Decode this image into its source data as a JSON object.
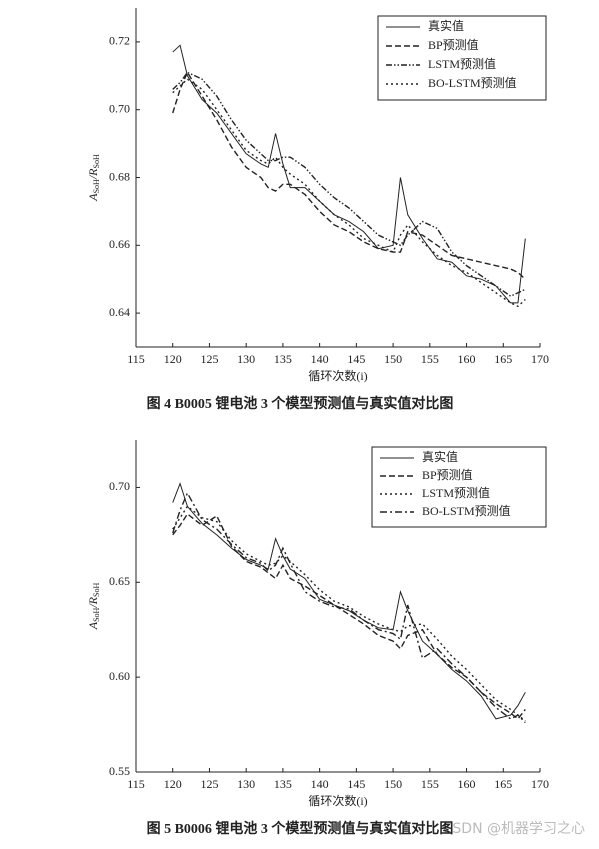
{
  "chart_data": [
    {
      "type": "line",
      "caption": "图 4   B0005 锂电池 3 个模型预测值与真实值对比图",
      "x_label": "循环次数(i)",
      "y_label": [
        "A",
        "SoH",
        "/R",
        "SoH"
      ],
      "x": [
        120,
        121,
        122,
        124,
        126,
        128,
        130,
        132,
        133,
        134,
        135,
        136,
        138,
        140,
        142,
        144,
        146,
        148,
        150,
        151,
        152,
        154,
        156,
        158,
        160,
        162,
        164,
        166,
        167,
        168
      ],
      "xlim": [
        115,
        170
      ],
      "xticks": [
        115,
        120,
        125,
        130,
        135,
        140,
        145,
        150,
        155,
        160,
        165,
        170
      ],
      "ylim": [
        0.63,
        0.73
      ],
      "yticks": [
        {
          "value": 0.64,
          "label": "0.64"
        },
        {
          "value": 0.66,
          "label": "0.66"
        },
        {
          "value": 0.68,
          "label": "0.68"
        },
        {
          "value": 0.7,
          "label": "0.70"
        },
        {
          "value": 0.72,
          "label": "0.72"
        }
      ],
      "legend": "upper right",
      "series": [
        {
          "name": "真实值",
          "color": "#222222",
          "style": "solid",
          "values": [
            0.717,
            0.719,
            0.71,
            0.703,
            0.699,
            0.693,
            0.687,
            0.684,
            0.683,
            0.693,
            0.684,
            0.677,
            0.677,
            0.673,
            0.669,
            0.667,
            0.664,
            0.659,
            0.66,
            0.68,
            0.669,
            0.662,
            0.656,
            0.655,
            0.651,
            0.65,
            0.648,
            0.643,
            0.643,
            0.662
          ]
        },
        {
          "name": "BP预测值",
          "color": "#222222",
          "style": "dashed",
          "values": [
            0.699,
            0.706,
            0.711,
            0.704,
            0.697,
            0.689,
            0.683,
            0.68,
            0.677,
            0.676,
            0.678,
            0.678,
            0.675,
            0.67,
            0.666,
            0.664,
            0.661,
            0.659,
            0.658,
            0.658,
            0.664,
            0.663,
            0.66,
            0.657,
            0.656,
            0.655,
            0.654,
            0.653,
            0.652,
            0.65
          ]
        },
        {
          "name": "LSTM预测值",
          "color": "#222222",
          "style": "dash-dot-dot",
          "values": [
            0.706,
            0.708,
            0.711,
            0.709,
            0.704,
            0.697,
            0.691,
            0.687,
            0.685,
            0.685,
            0.686,
            0.686,
            0.683,
            0.678,
            0.674,
            0.671,
            0.667,
            0.663,
            0.661,
            0.66,
            0.663,
            0.667,
            0.665,
            0.658,
            0.654,
            0.651,
            0.648,
            0.645,
            0.646,
            0.647
          ]
        },
        {
          "name": "BO-LSTM预测值",
          "color": "#222222",
          "style": "dotted",
          "values": [
            0.705,
            0.707,
            0.709,
            0.706,
            0.7,
            0.694,
            0.688,
            0.685,
            0.684,
            0.686,
            0.683,
            0.681,
            0.678,
            0.673,
            0.669,
            0.666,
            0.662,
            0.66,
            0.658,
            0.663,
            0.666,
            0.661,
            0.657,
            0.654,
            0.652,
            0.649,
            0.646,
            0.643,
            0.642,
            0.644
          ]
        }
      ]
    },
    {
      "type": "line",
      "caption": "图 5   B0006 锂电池 3 个模型预测值与真实值对比图",
      "x_label": "循环次数(i)",
      "y_label": [
        "A",
        "SoH",
        "/R",
        "SoH"
      ],
      "x": [
        120,
        121,
        122,
        124,
        126,
        128,
        130,
        132,
        133,
        134,
        135,
        136,
        138,
        140,
        142,
        144,
        146,
        148,
        150,
        151,
        152,
        154,
        156,
        158,
        160,
        162,
        164,
        166,
        167,
        168
      ],
      "xlim": [
        115,
        170
      ],
      "xticks": [
        115,
        120,
        125,
        130,
        135,
        140,
        145,
        150,
        155,
        160,
        165,
        170
      ],
      "ylim": [
        0.55,
        0.725
      ],
      "yticks": [
        {
          "value": 0.55,
          "label": "0.55"
        },
        {
          "value": 0.6,
          "label": "0.60"
        },
        {
          "value": 0.65,
          "label": "0.65"
        },
        {
          "value": 0.7,
          "label": "0.70"
        }
      ],
      "legend": "upper right",
      "series": [
        {
          "name": "真实值",
          "color": "#222222",
          "style": "solid",
          "values": [
            0.692,
            0.702,
            0.69,
            0.681,
            0.675,
            0.668,
            0.662,
            0.659,
            0.657,
            0.673,
            0.664,
            0.657,
            0.652,
            0.641,
            0.638,
            0.635,
            0.63,
            0.626,
            0.625,
            0.645,
            0.635,
            0.619,
            0.612,
            0.604,
            0.598,
            0.59,
            0.578,
            0.58,
            0.585,
            0.592
          ]
        },
        {
          "name": "BP预测值",
          "color": "#222222",
          "style": "dashed",
          "values": [
            0.675,
            0.68,
            0.686,
            0.68,
            0.685,
            0.669,
            0.661,
            0.658,
            0.655,
            0.652,
            0.659,
            0.652,
            0.648,
            0.643,
            0.638,
            0.633,
            0.628,
            0.622,
            0.619,
            0.615,
            0.622,
            0.625,
            0.612,
            0.605,
            0.6,
            0.592,
            0.586,
            0.581,
            0.578,
            0.583
          ]
        },
        {
          "name": "LSTM预测值",
          "color": "#222222",
          "style": "dotted",
          "values": [
            0.678,
            0.684,
            0.69,
            0.684,
            0.682,
            0.672,
            0.665,
            0.661,
            0.659,
            0.66,
            0.664,
            0.661,
            0.654,
            0.646,
            0.64,
            0.637,
            0.632,
            0.628,
            0.625,
            0.624,
            0.627,
            0.628,
            0.62,
            0.611,
            0.604,
            0.596,
            0.588,
            0.583,
            0.58,
            0.577
          ]
        },
        {
          "name": "BO-LSTM预测值",
          "color": "#222222",
          "style": "dash-dot",
          "values": [
            0.676,
            0.688,
            0.697,
            0.683,
            0.678,
            0.67,
            0.663,
            0.66,
            0.656,
            0.659,
            0.668,
            0.66,
            0.645,
            0.64,
            0.637,
            0.636,
            0.63,
            0.625,
            0.623,
            0.62,
            0.638,
            0.61,
            0.615,
            0.607,
            0.6,
            0.592,
            0.584,
            0.578,
            0.58,
            0.576
          ]
        }
      ]
    }
  ],
  "watermark": "CSDN @机器学习之心"
}
